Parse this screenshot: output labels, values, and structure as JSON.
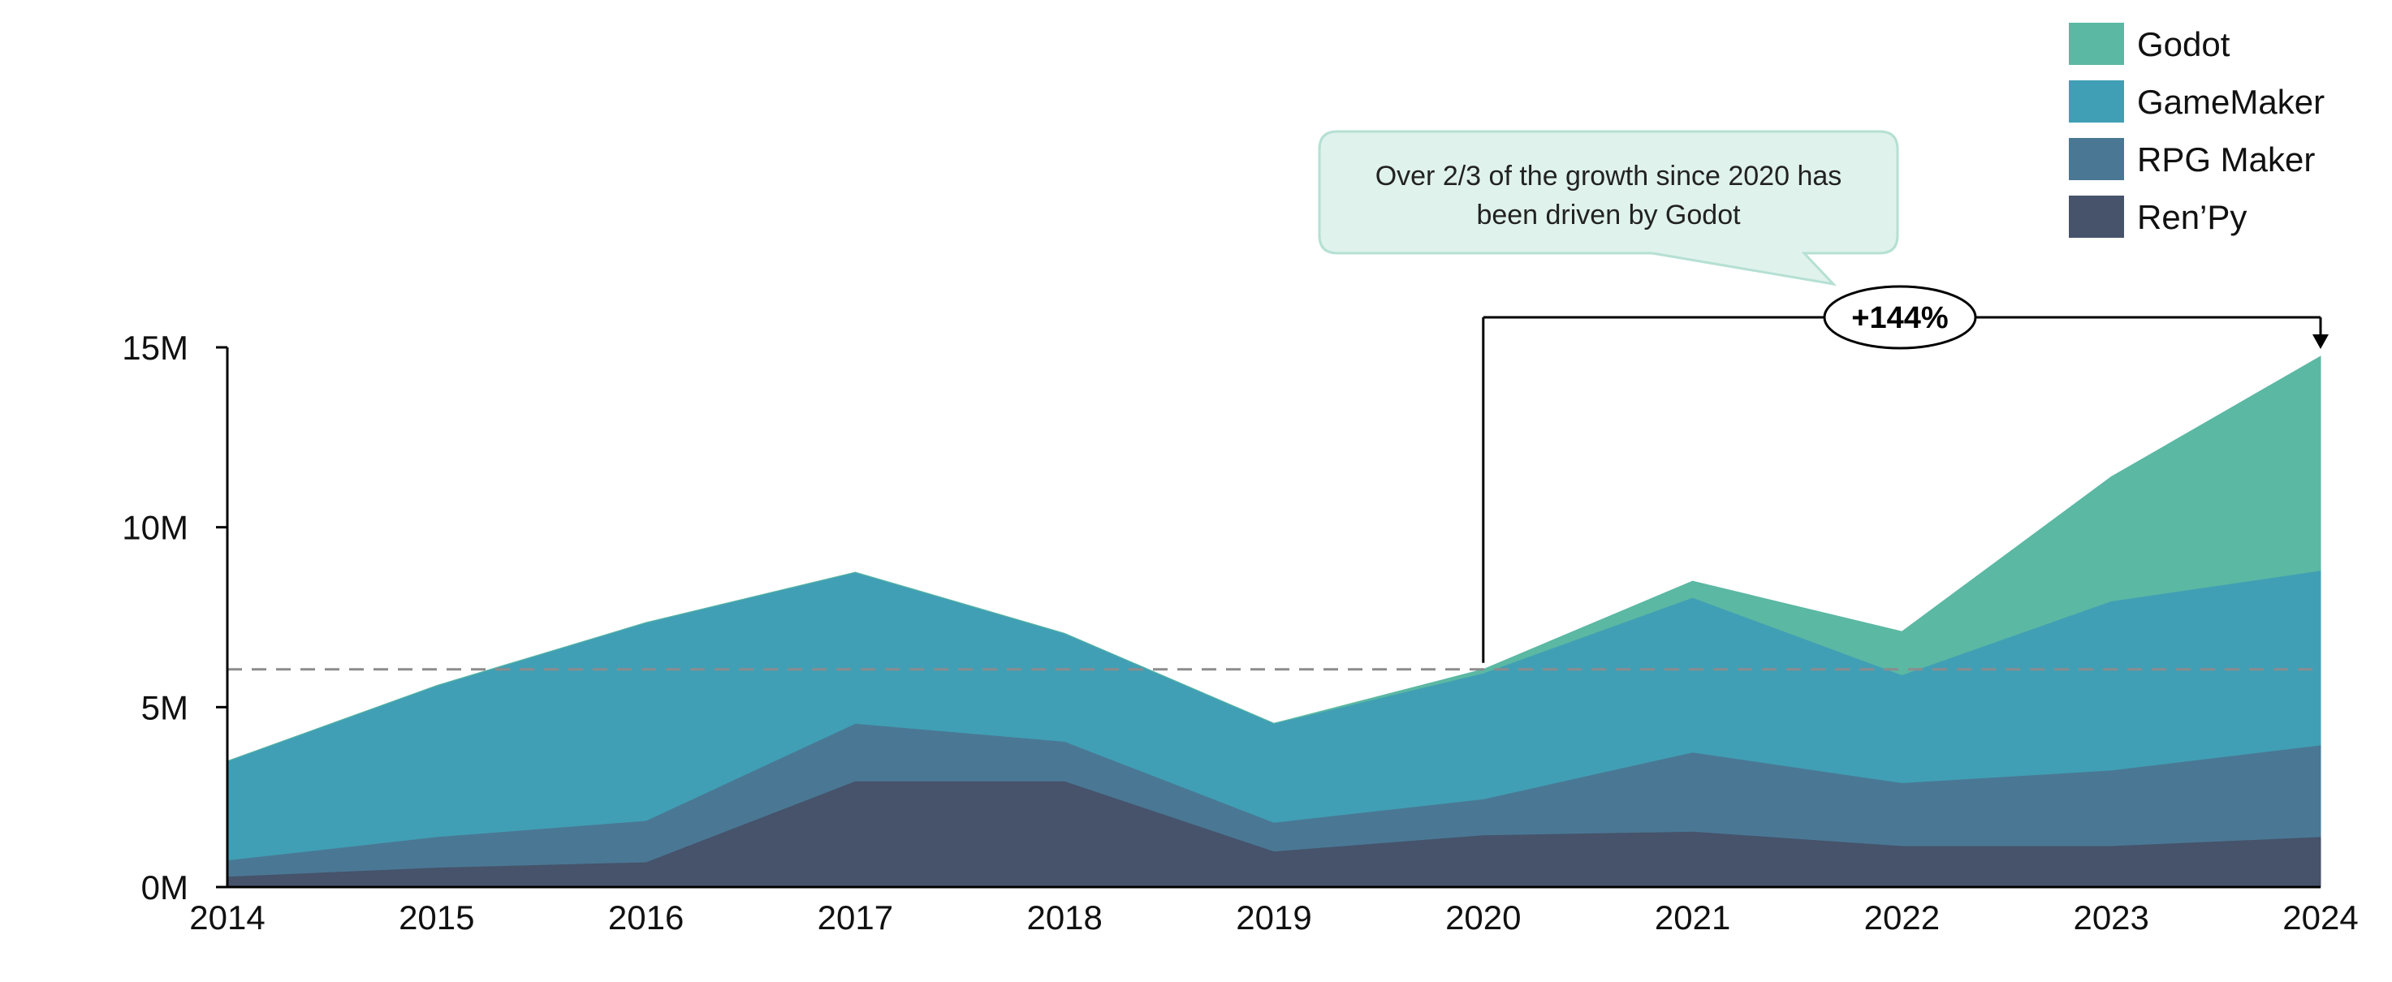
{
  "chart_data": {
    "type": "area",
    "stacked": true,
    "x": [
      "2014",
      "2015",
      "2016",
      "2017",
      "2018",
      "2019",
      "2020",
      "2021",
      "2022",
      "2023",
      "2024"
    ],
    "series": [
      {
        "name": "Ren’Py",
        "color": "#46536b",
        "values": [
          0.3,
          0.55,
          0.7,
          2.95,
          2.95,
          1.0,
          1.45,
          1.55,
          1.15,
          1.15,
          1.4
        ]
      },
      {
        "name": "RPG Maker",
        "color": "#4a7894",
        "values": [
          0.45,
          0.85,
          1.15,
          1.6,
          1.1,
          0.8,
          1.0,
          2.2,
          1.75,
          2.1,
          2.55
        ]
      },
      {
        "name": "GameMaker",
        "color": "#419fb5",
        "values": [
          2.75,
          4.2,
          5.5,
          4.2,
          3.0,
          2.75,
          3.5,
          4.3,
          3.0,
          4.7,
          4.85
        ]
      },
      {
        "name": "Godot",
        "color": "#5bb8a3",
        "values": [
          0,
          0,
          0,
          0,
          0,
          0,
          0.1,
          0.45,
          1.2,
          3.45,
          5.95
        ]
      }
    ],
    "yticks": [
      "0M",
      "5M",
      "10M",
      "15M"
    ],
    "ylim": [
      0,
      15
    ],
    "reference_line": 6.05,
    "legend_position": "top-right",
    "annotation": {
      "callout_line1": "Over 2/3 of the growth since 2020 has",
      "callout_line2": "been driven by Godot",
      "growth_label": "+144%",
      "from": "2020",
      "to": "2024"
    }
  }
}
